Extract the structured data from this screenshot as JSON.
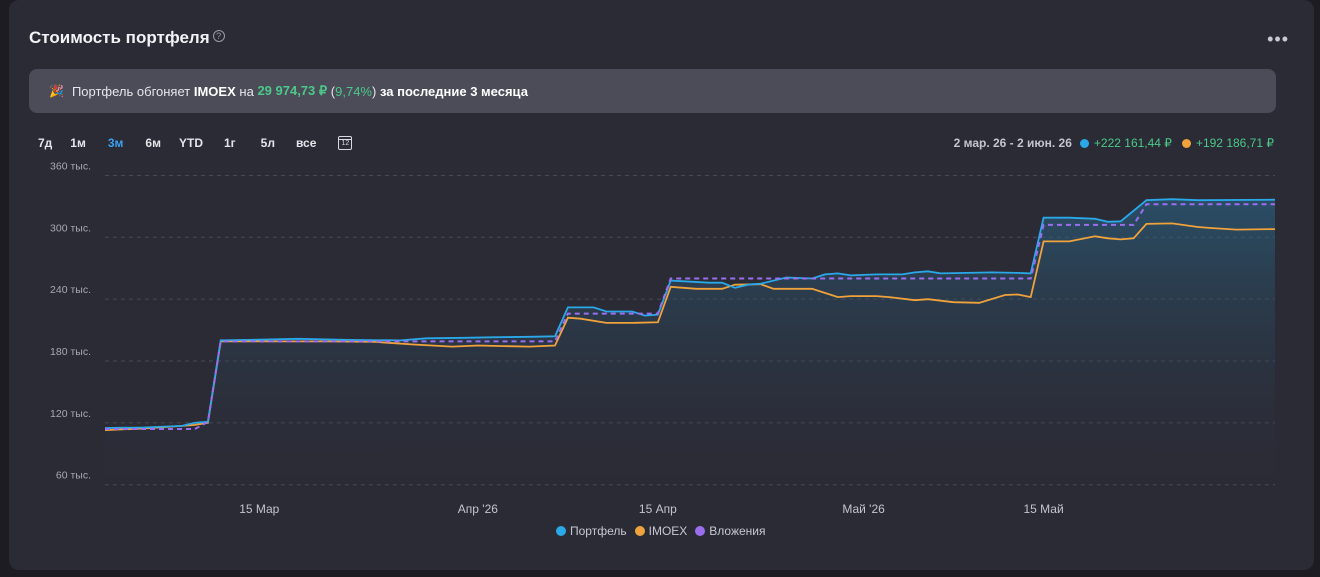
{
  "header": {
    "title": "Стоимость портфеля",
    "help": "?",
    "more": "•••"
  },
  "banner": {
    "emoji": "🎉",
    "prefix": "Портфель обгоняет",
    "index": "IMOEX",
    "mid": "на",
    "amount": "29 974,73 ₽",
    "paren_open": "(",
    "percent": "9,74%",
    "paren_close": ")",
    "suffix": "за последние 3 месяца"
  },
  "periods": [
    {
      "label": "7д",
      "active": false
    },
    {
      "label": "1м",
      "active": false
    },
    {
      "label": "3м",
      "active": true
    },
    {
      "label": "6м",
      "active": false
    },
    {
      "label": "YTD",
      "active": false
    },
    {
      "label": "1г",
      "active": false
    },
    {
      "label": "5л",
      "active": false
    },
    {
      "label": "все",
      "active": false
    }
  ],
  "calendar_icon": "12",
  "summary": {
    "range": "2 мар. 26 - 2 июн. 26",
    "portfolio_change": "+222 161,44 ₽",
    "imoex_change": "+192 186,71 ₽"
  },
  "colors": {
    "portfolio": "#2aa8e8",
    "imoex": "#f0a23c",
    "investments": "#9b6ef0",
    "grid": "#4a4a56"
  },
  "chart_data": {
    "type": "line",
    "x_start": "2026-03-03",
    "x_end": "2026-06-02",
    "ylim": [
      50000,
      375000
    ],
    "yticks": [
      {
        "value": 60000,
        "label": "60 тыс."
      },
      {
        "value": 120000,
        "label": "120 тыс."
      },
      {
        "value": 180000,
        "label": "180 тыс."
      },
      {
        "value": 240000,
        "label": "240 тыс."
      },
      {
        "value": 300000,
        "label": "300 тыс."
      },
      {
        "value": 360000,
        "label": "360 тыс."
      }
    ],
    "xticks": [
      {
        "date": "2026-03-15",
        "label": "15 Мар"
      },
      {
        "date": "2026-04-01",
        "label": "Апр '26"
      },
      {
        "date": "2026-04-15",
        "label": "15 Апр"
      },
      {
        "date": "2026-05-01",
        "label": "Май '26"
      },
      {
        "date": "2026-05-15",
        "label": "15 Май"
      }
    ],
    "series": [
      {
        "name": "Портфель",
        "key": "portfolio",
        "points": [
          [
            "2026-03-03",
            115000
          ],
          [
            "2026-03-06",
            115500
          ],
          [
            "2026-03-09",
            117000
          ],
          [
            "2026-03-10",
            120000
          ],
          [
            "2026-03-11",
            121000
          ],
          [
            "2026-03-12",
            200000
          ],
          [
            "2026-03-14",
            200500
          ],
          [
            "2026-03-18",
            201500
          ],
          [
            "2026-03-22",
            200500
          ],
          [
            "2026-03-26",
            200000
          ],
          [
            "2026-03-28",
            202000
          ],
          [
            "2026-03-31",
            202500
          ],
          [
            "2026-04-02",
            203000
          ],
          [
            "2026-04-05",
            203500
          ],
          [
            "2026-04-07",
            204000
          ],
          [
            "2026-04-08",
            232000
          ],
          [
            "2026-04-10",
            232000
          ],
          [
            "2026-04-11",
            228000
          ],
          [
            "2026-04-13",
            228000
          ],
          [
            "2026-04-14",
            224000
          ],
          [
            "2026-04-15",
            225000
          ],
          [
            "2026-04-16",
            258000
          ],
          [
            "2026-04-19",
            256000
          ],
          [
            "2026-04-20",
            256000
          ],
          [
            "2026-04-21",
            251000
          ],
          [
            "2026-04-22",
            254000
          ],
          [
            "2026-04-23",
            255000
          ],
          [
            "2026-04-25",
            261000
          ],
          [
            "2026-04-27",
            260000
          ],
          [
            "2026-04-28",
            264000
          ],
          [
            "2026-04-29",
            265000
          ],
          [
            "2026-04-30",
            263000
          ],
          [
            "2026-05-02",
            264000
          ],
          [
            "2026-05-04",
            264000
          ],
          [
            "2026-05-05",
            266000
          ],
          [
            "2026-05-06",
            267000
          ],
          [
            "2026-05-07",
            265000
          ],
          [
            "2026-05-11",
            266000
          ],
          [
            "2026-05-13",
            265500
          ],
          [
            "2026-05-14",
            265000
          ],
          [
            "2026-05-15",
            319000
          ],
          [
            "2026-05-17",
            319000
          ],
          [
            "2026-05-19",
            318000
          ],
          [
            "2026-05-20",
            315000
          ],
          [
            "2026-05-21",
            315500
          ],
          [
            "2026-05-23",
            336000
          ],
          [
            "2026-05-25",
            337000
          ],
          [
            "2026-05-27",
            336000
          ],
          [
            "2026-06-02",
            336500
          ]
        ]
      },
      {
        "name": "IMOEX",
        "key": "imoex",
        "points": [
          [
            "2026-03-03",
            113000
          ],
          [
            "2026-03-06",
            114500
          ],
          [
            "2026-03-09",
            117000
          ],
          [
            "2026-03-10",
            118000
          ],
          [
            "2026-03-11",
            120000
          ],
          [
            "2026-03-12",
            199000
          ],
          [
            "2026-03-16",
            199000
          ],
          [
            "2026-03-20",
            199000
          ],
          [
            "2026-03-24",
            198500
          ],
          [
            "2026-03-27",
            196000
          ],
          [
            "2026-03-30",
            194000
          ],
          [
            "2026-04-01",
            195000
          ],
          [
            "2026-04-03",
            194500
          ],
          [
            "2026-04-05",
            194000
          ],
          [
            "2026-04-07",
            195000
          ],
          [
            "2026-04-08",
            222000
          ],
          [
            "2026-04-09",
            221000
          ],
          [
            "2026-04-11",
            217000
          ],
          [
            "2026-04-13",
            217000
          ],
          [
            "2026-04-15",
            217500
          ],
          [
            "2026-04-16",
            252000
          ],
          [
            "2026-04-18",
            250000
          ],
          [
            "2026-04-20",
            250000
          ],
          [
            "2026-04-21",
            254000
          ],
          [
            "2026-04-23",
            254500
          ],
          [
            "2026-04-24",
            250000
          ],
          [
            "2026-04-27",
            250000
          ],
          [
            "2026-04-29",
            242000
          ],
          [
            "2026-04-30",
            243000
          ],
          [
            "2026-05-02",
            243000
          ],
          [
            "2026-05-03",
            242000
          ],
          [
            "2026-05-05",
            239000
          ],
          [
            "2026-05-06",
            240000
          ],
          [
            "2026-05-08",
            237000
          ],
          [
            "2026-05-10",
            236500
          ],
          [
            "2026-05-12",
            244000
          ],
          [
            "2026-05-13",
            244500
          ],
          [
            "2026-05-14",
            242000
          ],
          [
            "2026-05-15",
            296000
          ],
          [
            "2026-05-17",
            296000
          ],
          [
            "2026-05-19",
            301000
          ],
          [
            "2026-05-20",
            299000
          ],
          [
            "2026-05-21",
            298000
          ],
          [
            "2026-05-22",
            299000
          ],
          [
            "2026-05-23",
            313000
          ],
          [
            "2026-05-25",
            313500
          ],
          [
            "2026-05-27",
            310000
          ],
          [
            "2026-05-28",
            309000
          ],
          [
            "2026-05-30",
            307500
          ],
          [
            "2026-06-02",
            308000
          ]
        ]
      },
      {
        "name": "Вложения",
        "key": "investments",
        "dashed": true,
        "points": [
          [
            "2026-03-03",
            114000
          ],
          [
            "2026-03-10",
            114000
          ],
          [
            "2026-03-11",
            121000
          ],
          [
            "2026-03-12",
            199000
          ],
          [
            "2026-04-07",
            199000
          ],
          [
            "2026-04-08",
            226000
          ],
          [
            "2026-04-15",
            226000
          ],
          [
            "2026-04-16",
            260000
          ],
          [
            "2026-05-14",
            260000
          ],
          [
            "2026-05-15",
            312000
          ],
          [
            "2026-05-22",
            312000
          ],
          [
            "2026-05-23",
            332000
          ],
          [
            "2026-06-02",
            332000
          ]
        ]
      }
    ],
    "legend": [
      "Портфель",
      "IMOEX",
      "Вложения"
    ],
    "grid": true,
    "grid_style": "dashed"
  },
  "legend_labels": {
    "portfolio": "Портфель",
    "imoex": "IMOEX",
    "investments": "Вложения"
  }
}
